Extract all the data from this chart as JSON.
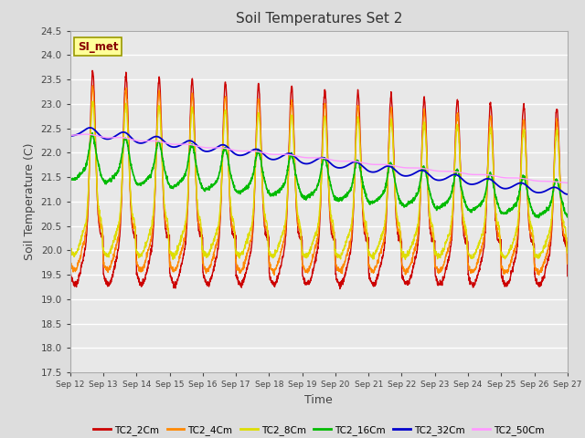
{
  "title": "Soil Temperatures Set 2",
  "xlabel": "Time",
  "ylabel": "Soil Temperature (C)",
  "ylim": [
    17.5,
    24.5
  ],
  "series_colors": [
    "#cc0000",
    "#ff8800",
    "#dddd00",
    "#00bb00",
    "#0000cc",
    "#ff99ff"
  ],
  "series_names": [
    "TC2_2Cm",
    "TC2_4Cm",
    "TC2_8Cm",
    "TC2_16Cm",
    "TC2_32Cm",
    "TC2_50Cm"
  ],
  "bg_color": "#dddddd",
  "plot_bg_color": "#e8e8e8",
  "annotation_text": "SI_met",
  "annotation_bg": "#ffff99",
  "annotation_border": "#999900",
  "n_days": 15,
  "pts_per_day": 144,
  "xtick_labels": [
    "Sep 12",
    "Sep 13",
    "Sep 14",
    "Sep 15",
    "Sep 16",
    "Sep 17",
    "Sep 18",
    "Sep 19",
    "Sep 20",
    "Sep 21",
    "Sep 22",
    "Sep 23",
    "Sep 24",
    "Sep 25",
    "Sep 26",
    "Sep 27"
  ]
}
